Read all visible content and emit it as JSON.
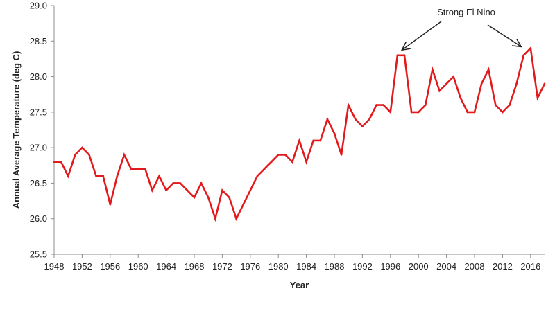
{
  "chart_data": {
    "type": "line",
    "title": "",
    "xlabel": "Year",
    "ylabel": "Annual Average Temperature (deg C)",
    "xlim": [
      1948,
      2018
    ],
    "ylim": [
      25.5,
      29.0
    ],
    "x_ticks": [
      "1948",
      "1952",
      "1956",
      "1960",
      "1964",
      "1968",
      "1972",
      "1976",
      "1980",
      "1984",
      "1988",
      "1992",
      "1996",
      "2000",
      "2004",
      "2008",
      "2012",
      "2016"
    ],
    "y_ticks": [
      "25.5",
      "26.0",
      "26.5",
      "27.0",
      "27.5",
      "28.0",
      "28.5",
      "29.0"
    ],
    "grid": false,
    "legend": false,
    "series_color": "#e31a1c",
    "series": [
      {
        "x": [
          1948,
          1949,
          1950,
          1951,
          1952,
          1953,
          1954,
          1955,
          1956,
          1957,
          1958,
          1959,
          1960,
          1961,
          1962,
          1963,
          1964,
          1965,
          1966,
          1967,
          1968,
          1969,
          1970,
          1971,
          1972,
          1973,
          1974,
          1975,
          1976,
          1977,
          1978,
          1979,
          1980,
          1981,
          1982,
          1983,
          1984,
          1985,
          1986,
          1987,
          1988,
          1989,
          1990,
          1991,
          1992,
          1993,
          1994,
          1995,
          1996,
          1997,
          1998,
          1999,
          2000,
          2001,
          2002,
          2003,
          2004,
          2005,
          2006,
          2007,
          2008,
          2009,
          2010,
          2011,
          2012,
          2013,
          2014,
          2015,
          2016,
          2017,
          2018
        ],
        "values": [
          26.8,
          26.8,
          26.6,
          26.9,
          27.0,
          26.9,
          26.6,
          26.6,
          26.2,
          26.6,
          26.9,
          26.7,
          26.7,
          26.7,
          26.4,
          26.6,
          26.4,
          26.5,
          26.5,
          26.4,
          26.3,
          26.5,
          26.3,
          26.0,
          26.4,
          26.3,
          26.0,
          26.2,
          26.4,
          26.6,
          26.7,
          26.8,
          26.9,
          26.9,
          26.8,
          27.1,
          26.8,
          27.1,
          27.1,
          27.4,
          27.2,
          26.9,
          27.6,
          27.4,
          27.3,
          27.4,
          27.6,
          27.6,
          27.5,
          28.3,
          28.3,
          27.5,
          27.5,
          27.6,
          28.1,
          27.8,
          27.9,
          28.0,
          27.7,
          27.5,
          27.5,
          27.9,
          28.1,
          27.6,
          27.5,
          27.6,
          27.9,
          28.3,
          28.4,
          27.7,
          27.9
        ]
      }
    ],
    "annotations": [
      {
        "text": "Strong El Nino",
        "arrows_to": [
          {
            "x": 1997.3,
            "y": 28.35
          },
          {
            "x": 2015.0,
            "y": 28.4
          }
        ]
      }
    ]
  }
}
